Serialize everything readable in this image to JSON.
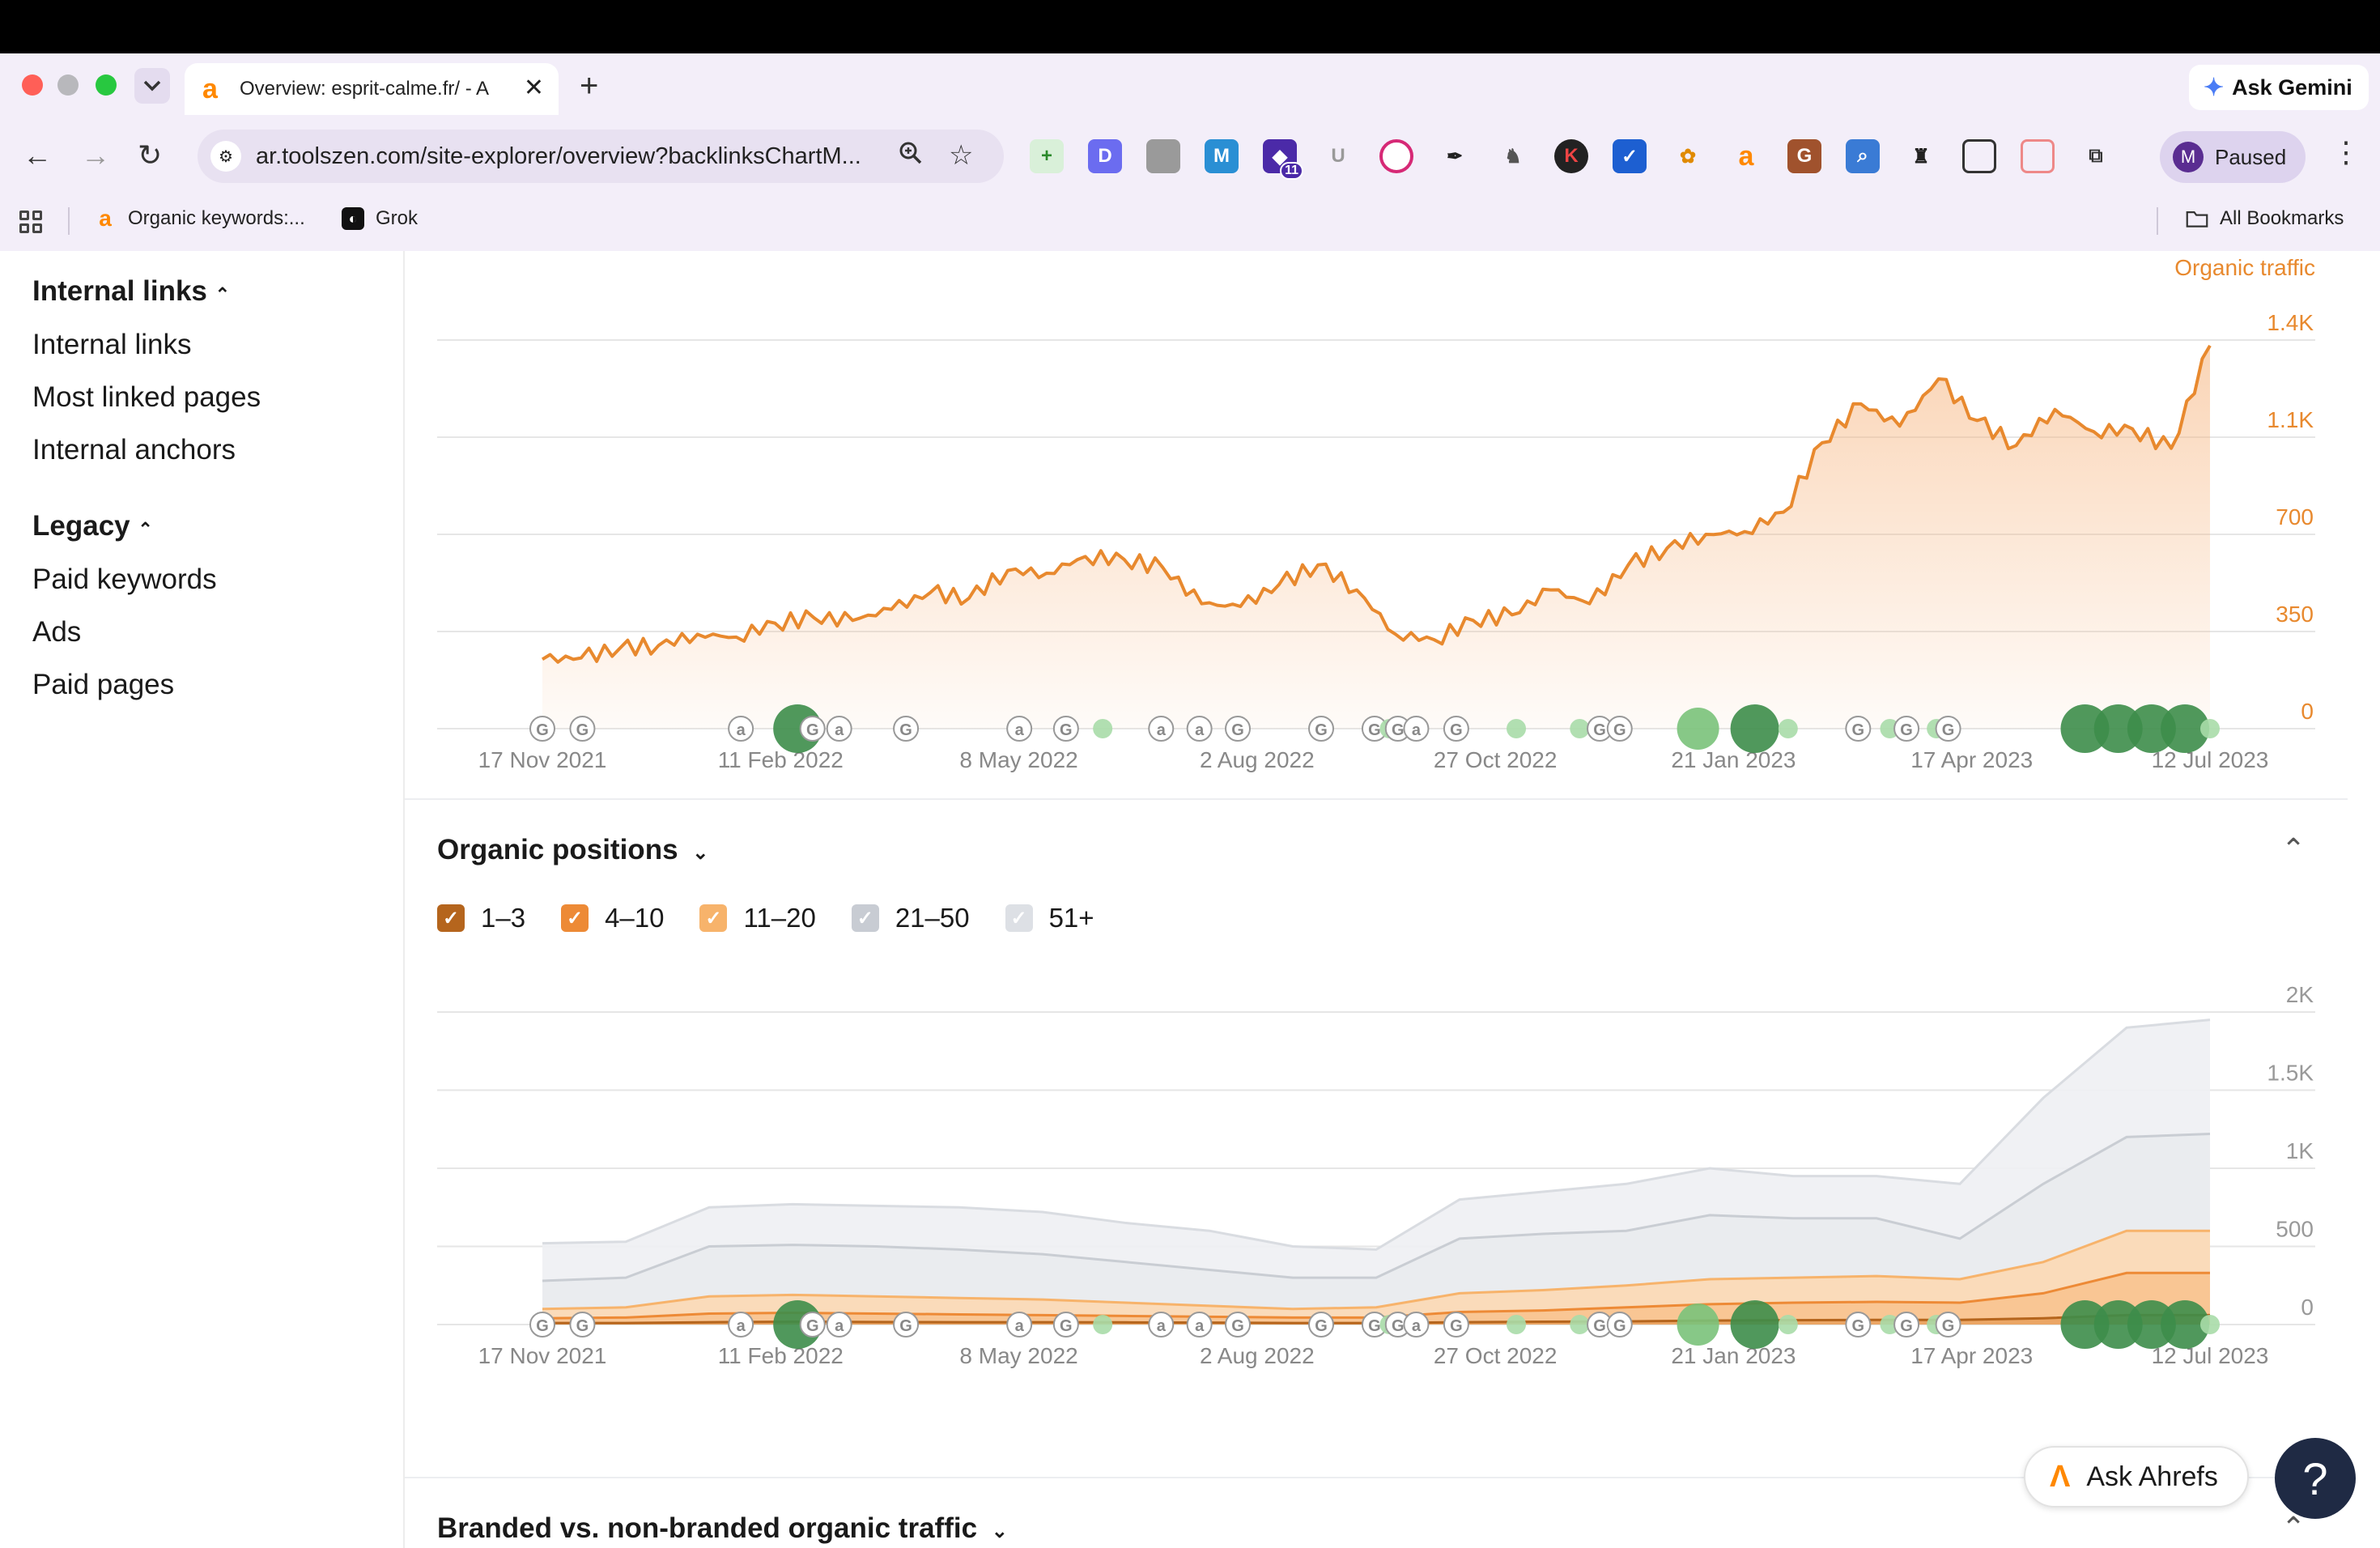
{
  "browser": {
    "tab_title": "Overview: esprit-calme.fr/ - A",
    "url": "ar.toolszen.com/site-explorer/overview?backlinksChartM...",
    "ask_gemini": "Ask Gemini",
    "profile_initial": "M",
    "profile_status": "Paused",
    "bookmarks": [
      {
        "label": "Organic keywords:..."
      },
      {
        "label": "Grok"
      }
    ],
    "all_bookmarks": "All Bookmarks",
    "extension_badge": "11"
  },
  "sidebar": {
    "sections": [
      {
        "title": "Internal links",
        "items": [
          "Internal links",
          "Most linked pages",
          "Internal anchors"
        ]
      },
      {
        "title": "Legacy",
        "items": [
          "Paid keywords",
          "Ads",
          "Paid pages"
        ]
      }
    ]
  },
  "traffic_chart": {
    "series_label": "Organic traffic",
    "color": "#e8892e"
  },
  "positions_section": {
    "title": "Organic positions",
    "legend": [
      {
        "label": "1–3",
        "color": "#b5651d",
        "checked": true
      },
      {
        "label": "4–10",
        "color": "#ed8a36",
        "checked": true
      },
      {
        "label": "11–20",
        "color": "#f7b36b",
        "checked": true
      },
      {
        "label": "21–50",
        "color": "#c8ccd3",
        "checked": true
      },
      {
        "label": "51+",
        "color": "#dde0e5",
        "checked": true
      }
    ]
  },
  "branded_section": {
    "title": "Branded vs. non-branded organic traffic"
  },
  "widgets": {
    "ask_ahrefs": "Ask Ahrefs",
    "help": "?"
  },
  "chart_data": [
    {
      "type": "line",
      "title": "",
      "series": [
        {
          "name": "Organic traffic",
          "values": [
            250,
            255,
            290,
            300,
            340,
            330,
            380,
            400,
            390,
            430,
            490,
            470,
            570,
            560,
            620,
            610,
            580,
            450,
            440,
            520,
            590,
            500,
            340,
            320,
            390,
            410,
            500,
            450,
            590,
            650,
            700,
            710,
            780,
            1030,
            1170,
            1090,
            1260,
            1110,
            1020,
            1150,
            1070,
            1080,
            1010,
            1380
          ]
        }
      ],
      "x": [
        "17 Nov 2021",
        "",
        "",
        "",
        "",
        "",
        "",
        "",
        "",
        "",
        "11 Feb 2022",
        "",
        "",
        "",
        "",
        "",
        "",
        "8 May 2022",
        "",
        "",
        "",
        "",
        "",
        "2 Aug 2022",
        "",
        "",
        "",
        "",
        "",
        "27 Oct 2022",
        "",
        "",
        "",
        "",
        "",
        "21 Jan 2023",
        "",
        "",
        "",
        "",
        "17 Apr 2023",
        "",
        "",
        "12 Jul 2023"
      ],
      "x_ticks": [
        "17 Nov 2021",
        "11 Feb 2022",
        "8 May 2022",
        "2 Aug 2022",
        "27 Oct 2022",
        "21 Jan 2023",
        "17 Apr 2023",
        "12 Jul 2023"
      ],
      "y_ticks": [
        "0",
        "350",
        "700",
        "1.1K",
        "1.4K"
      ],
      "ylim": [
        0,
        1400
      ],
      "ylabel": "Organic traffic",
      "grid": true
    },
    {
      "type": "area",
      "title": "Organic positions",
      "x_ticks": [
        "17 Nov 2021",
        "11 Feb 2022",
        "8 May 2022",
        "2 Aug 2022",
        "27 Oct 2022",
        "21 Jan 2023",
        "17 Apr 2023",
        "12 Jul 2023"
      ],
      "y_ticks": [
        "0",
        "500",
        "1K",
        "1.5K",
        "2K"
      ],
      "ylim": [
        0,
        2000
      ],
      "series": [
        {
          "name": "51+",
          "values": [
            520,
            530,
            750,
            770,
            760,
            750,
            720,
            650,
            600,
            500,
            480,
            800,
            850,
            900,
            1000,
            950,
            950,
            900,
            1450,
            1900,
            1950
          ]
        },
        {
          "name": "21–50",
          "values": [
            280,
            300,
            500,
            510,
            500,
            480,
            450,
            400,
            350,
            300,
            300,
            550,
            580,
            600,
            700,
            680,
            680,
            550,
            900,
            1200,
            1220
          ]
        },
        {
          "name": "11–20",
          "values": [
            100,
            110,
            180,
            190,
            180,
            170,
            160,
            140,
            120,
            100,
            110,
            200,
            220,
            250,
            290,
            300,
            310,
            290,
            400,
            600,
            600
          ]
        },
        {
          "name": "4–10",
          "values": [
            40,
            45,
            70,
            75,
            70,
            65,
            60,
            55,
            50,
            45,
            45,
            80,
            90,
            110,
            130,
            140,
            145,
            140,
            200,
            330,
            330
          ]
        },
        {
          "name": "1–3",
          "values": [
            10,
            10,
            15,
            18,
            16,
            15,
            15,
            14,
            12,
            10,
            10,
            15,
            18,
            20,
            25,
            28,
            30,
            30,
            40,
            60,
            60
          ]
        }
      ],
      "grid": true
    }
  ]
}
